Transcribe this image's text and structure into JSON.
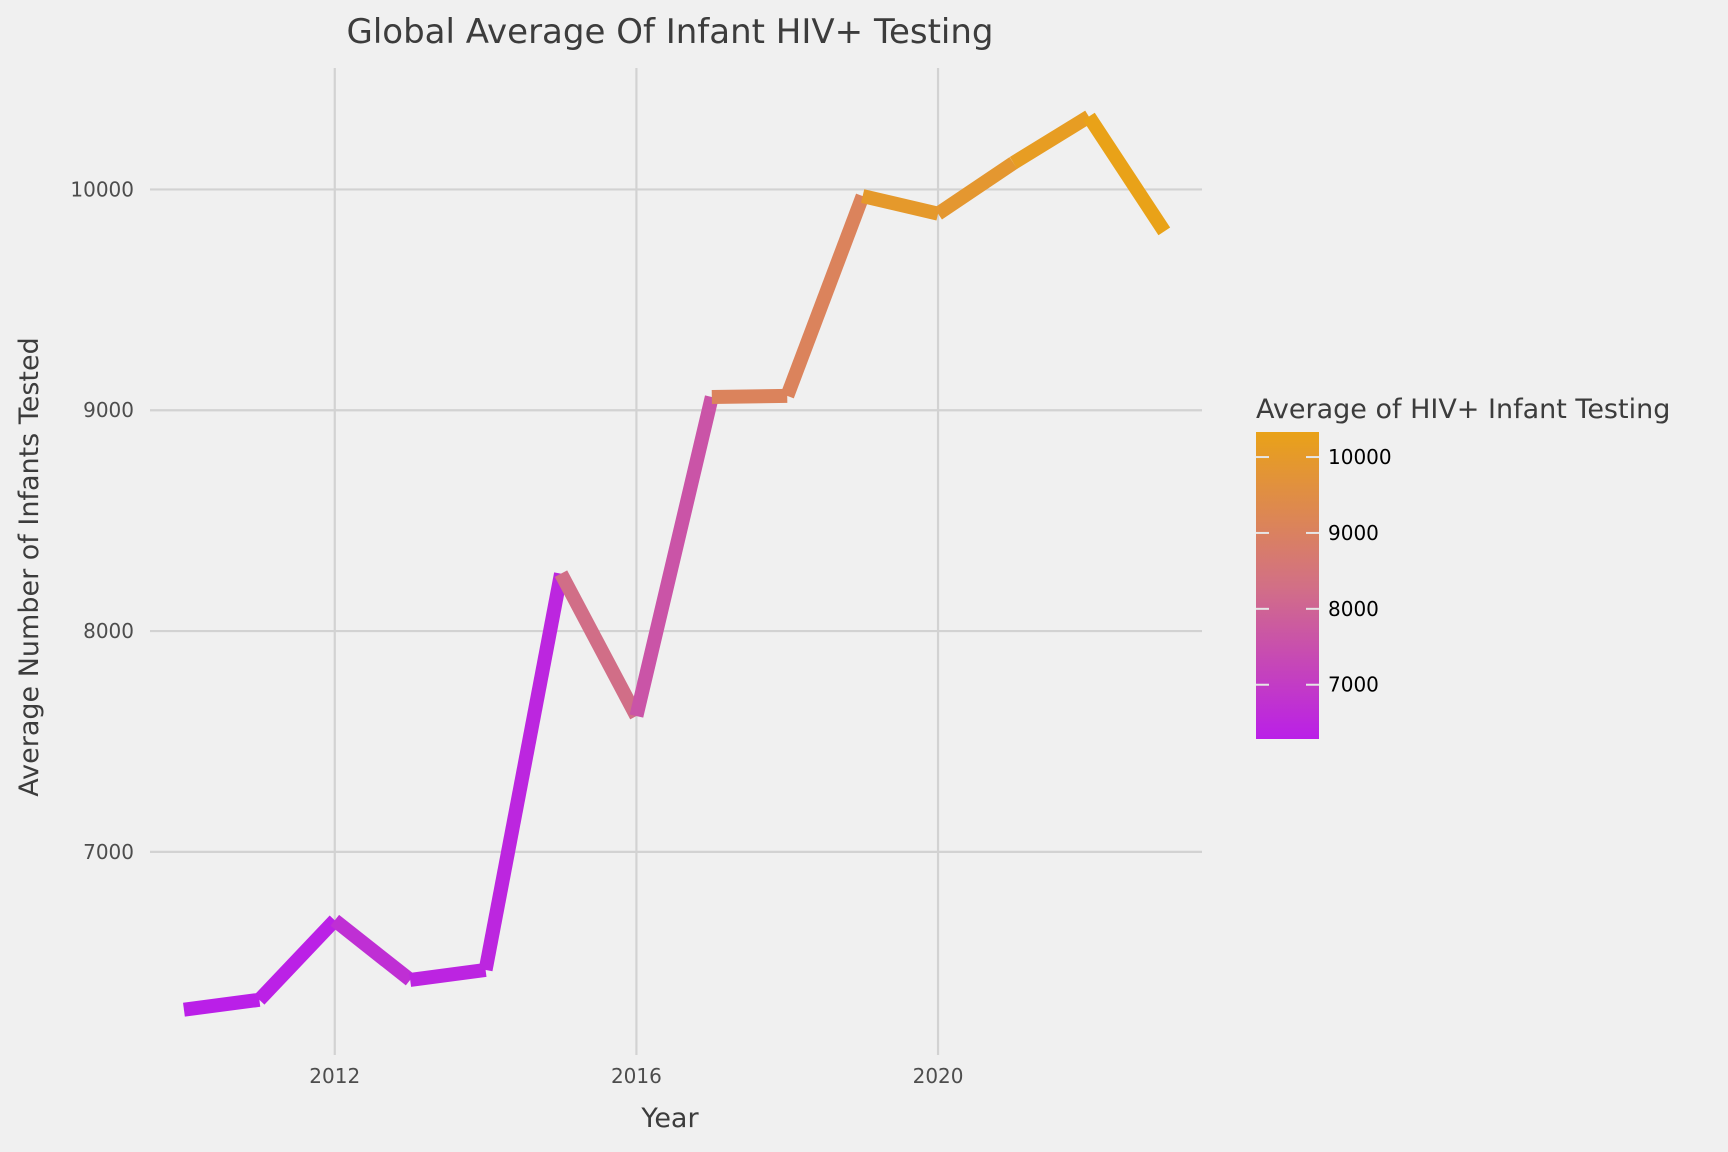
{
  "chart_data": {
    "type": "line",
    "title": "Global Average Of Infant HIV+ Testing",
    "xlabel": "Year",
    "ylabel": "Average Number of Infants Tested",
    "x": [
      2010,
      2011,
      2012,
      2013,
      2014,
      2015,
      2016,
      2017,
      2018,
      2019,
      2020,
      2021,
      2022,
      2023
    ],
    "series": [
      {
        "values": [
          6285,
          6330,
          6690,
          6420,
          6465,
          8260,
          7615,
          9060,
          9065,
          9970,
          9890,
          10120,
          10330,
          9810
        ]
      }
    ],
    "x_ticks": [
      2012,
      2016,
      2020
    ],
    "x_tick_labels": [
      "2012",
      "2016",
      "2020"
    ],
    "xlim": [
      2009.55,
      2023.5
    ],
    "y_ticks": [
      7000,
      8000,
      9000,
      10000
    ],
    "y_tick_labels": [
      "7000",
      "8000",
      "9000",
      "10000"
    ],
    "ylim": [
      6080,
      10550
    ],
    "grid": true,
    "color_scale": {
      "title": "Average of HIV+ Infant Testing",
      "min": 6285,
      "max": 10330,
      "low_color": "#ba1fe8",
      "mid_color": "#d27085",
      "high_color": "#e9a218",
      "ticks": [
        7000,
        8000,
        9000,
        10000
      ],
      "tick_labels": [
        "7000",
        "8000",
        "9000",
        "10000"
      ]
    },
    "legend_position": "right"
  }
}
